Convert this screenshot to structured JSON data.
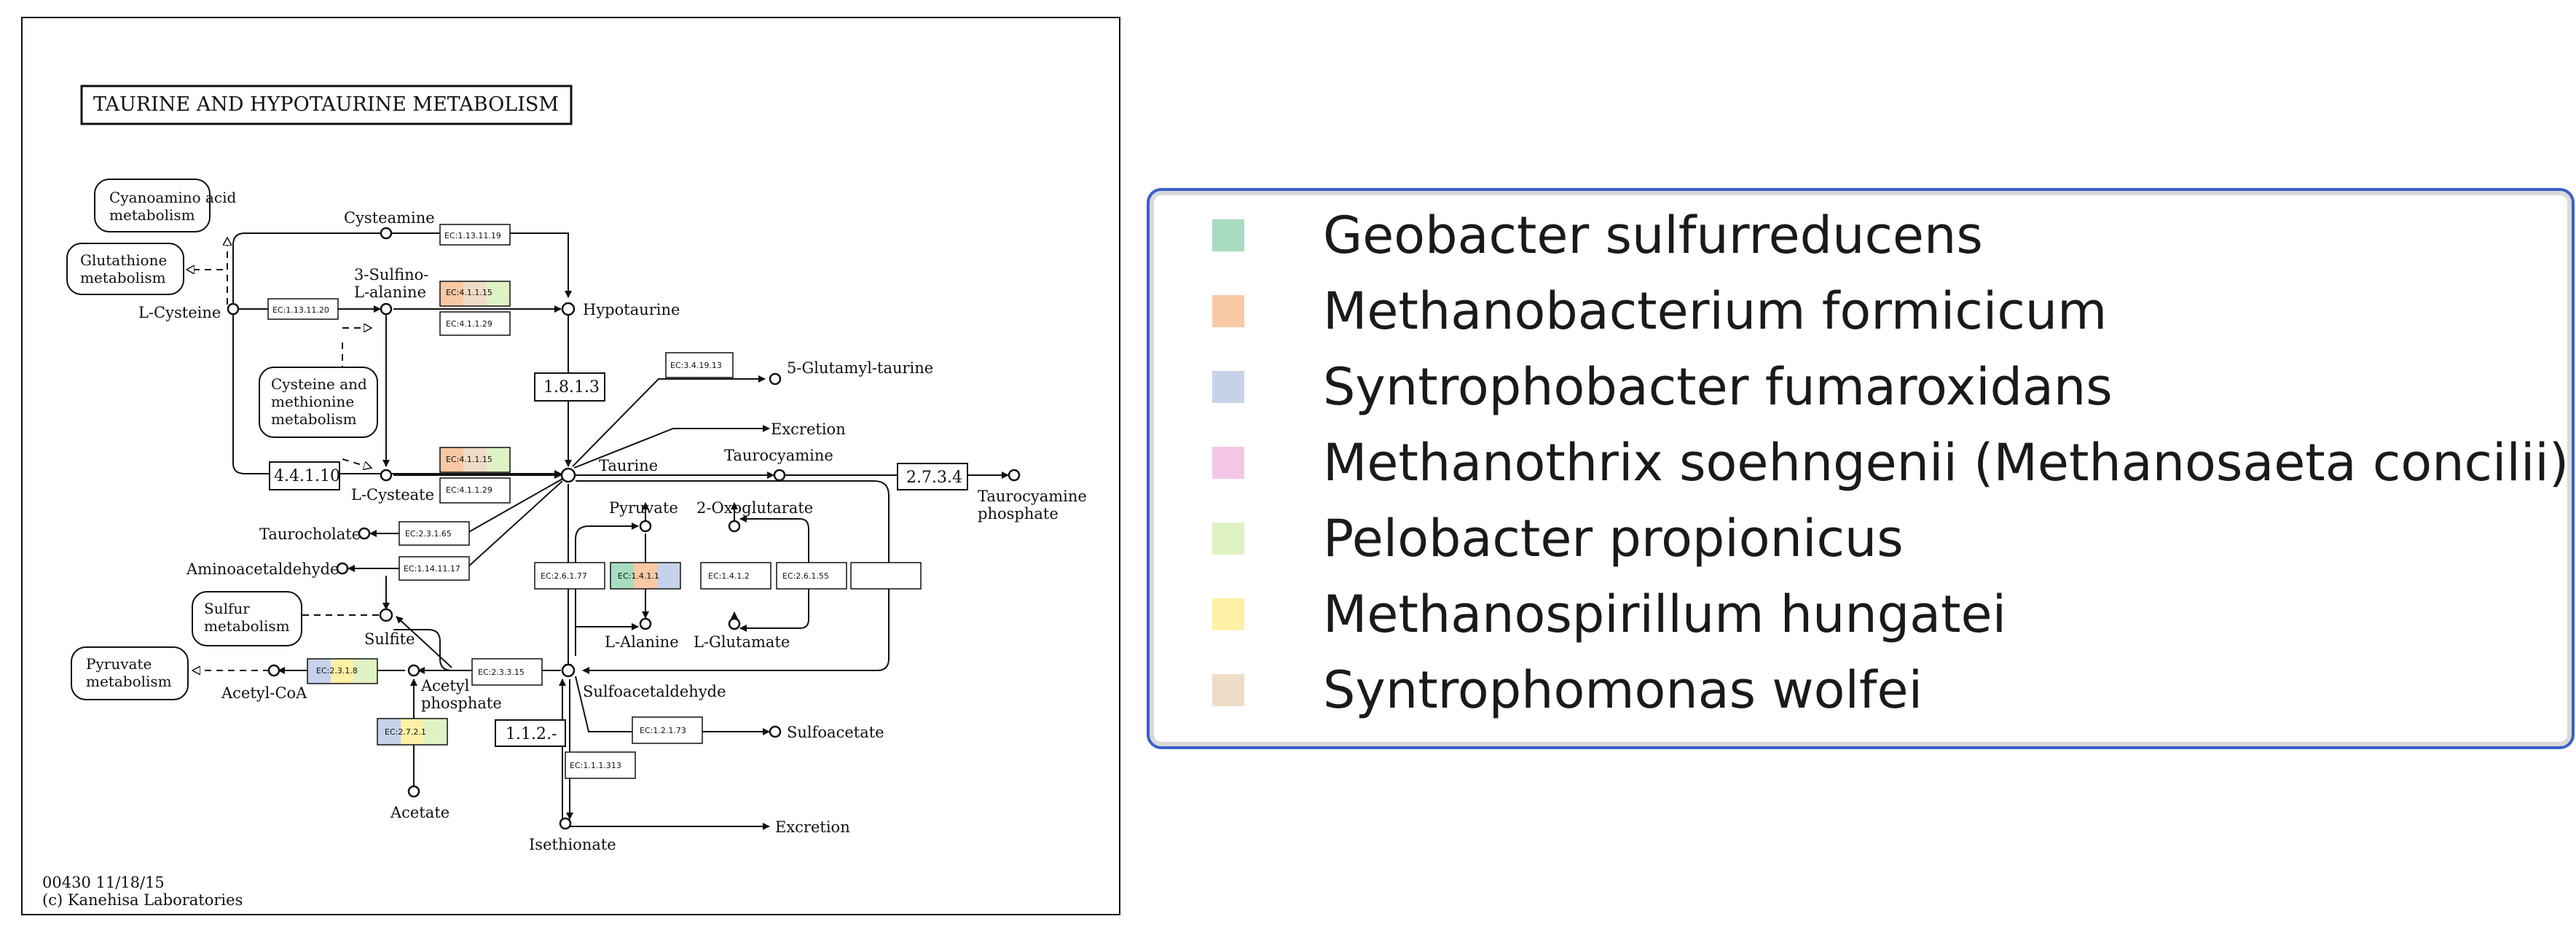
{
  "diagram": {
    "title": "TAURINE AND HYPOTAURINE METABOLISM",
    "footer_id": "00430 11/18/15",
    "footer_copyright": "(c) Kanehisa Laboratories",
    "pathway_boxes": {
      "cyanoamino": [
        "Cyanoamino acid",
        "metabolism"
      ],
      "glutathione": [
        "Glutathione",
        "metabolism"
      ],
      "cysteine_methionine": [
        "Cysteine and",
        "methionine",
        "metabolism"
      ],
      "sulfur": [
        "Sulfur",
        "metabolism"
      ],
      "pyruvate": [
        "Pyruvate",
        "metabolism"
      ]
    },
    "compounds": {
      "cysteamine": "Cysteamine",
      "sulfino_alanine": [
        "3-Sulfino-",
        "L-alanine"
      ],
      "l_cysteine": "L-Cysteine",
      "hypotaurine": "Hypotaurine",
      "glutamyl_taurine": "5-Glutamyl-taurine",
      "excretion_top": "Excretion",
      "taurine": "Taurine",
      "taurocyamine": "Taurocyamine",
      "taurocyamine_phosphate": [
        "Taurocyamine",
        "phosphate"
      ],
      "l_cysteate": "L-Cysteate",
      "taurocholate": "Taurocholate",
      "aminoacetaldehyde": "Aminoacetaldehyde",
      "pyruvate": "Pyruvate",
      "oxoglutarate": "2-Oxoglutarate",
      "l_alanine": "L-Alanine",
      "l_glutamate": "L-Glutamate",
      "sulfite": "Sulfite",
      "acetyl_coa": "Acetyl-CoA",
      "acetyl_phosphate": [
        "Acetyl",
        "phosphate"
      ],
      "sulfoacetaldehyde": "Sulfoacetaldehyde",
      "sulfoacetate": "Sulfoacetate",
      "acetate": "Acetate",
      "isethionate": "Isethionate",
      "excretion_bottom": "Excretion"
    },
    "enzymes": {
      "ec_1_13_11_19": "EC:1.13.11.19",
      "ec_1_13_11_20": "EC:1.13.11.20",
      "ec_4_1_1_15_a": "EC:4.1.1.15",
      "ec_4_1_1_29_a": "EC:4.1.1.29",
      "ec_3_4_19_13": "EC:3.4.19.13",
      "ec_1_8_1_3": "1.8.1.3",
      "ec_4_4_1_10": "4.4.1.10",
      "ec_4_1_1_15_b": "EC:4.1.1.15",
      "ec_4_1_1_29_b": "EC:4.1.1.29",
      "ec_2_7_3_4": "2.7.3.4",
      "ec_2_3_1_65": "EC:2.3.1.65",
      "ec_1_4_11_17": "EC:1.14.11.17",
      "ec_2_6_1_77": "EC:2.6.1.77",
      "ec_1_4_1_1": "EC:1.4.1.1",
      "ec_1_4_1_2": "EC:1.4.1.2",
      "ec_2_6_1_55": "EC:2.6.1.55",
      "ec_2_3_3_15": "EC:2.3.3.15",
      "ec_2_3_1_8": "EC:2.3.1.8",
      "ec_2_7_2_1": "EC:2.7.2.1",
      "ec_1_1_2": "1.1.2.-",
      "ec_1_2_1_73": "EC:1.2.1.73",
      "ec_1_1_1_313": "EC:1.1.1.313"
    }
  },
  "legend": {
    "items": [
      {
        "label": "Geobacter sulfurreducens",
        "color": "#a8dcc0"
      },
      {
        "label": "Methanobacterium formicicum",
        "color": "#f9c8a4"
      },
      {
        "label": "Syntrophobacter fumaroxidans",
        "color": "#c5d2ea"
      },
      {
        "label": "Methanothrix soehngenii (Methanosaeta concilii)",
        "color": "#f4c6e6"
      },
      {
        "label": "Pelobacter propionicus",
        "color": "#dff2c4"
      },
      {
        "label": "Methanospirillum hungatei",
        "color": "#fdf1a6"
      },
      {
        "label": "Syntrophomonas wolfei",
        "color": "#efdcc8"
      }
    ]
  }
}
